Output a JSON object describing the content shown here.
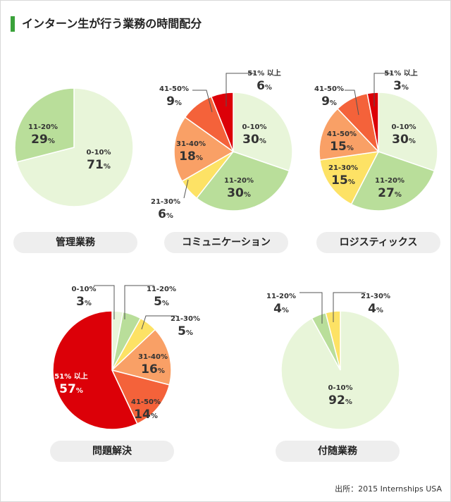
{
  "title": "インターン生が行う業務の時間配分",
  "source": "出所：2015 Internships USA",
  "colors": {
    "0-10%": "#e8f5d9",
    "11-20%": "#b9de9a",
    "21-30%": "#fde265",
    "31-40%": "#f9a066",
    "41-50%": "#f4623a",
    "51% 以上": "#dc0008"
  },
  "chart_data": [
    {
      "type": "pie",
      "title": "管理業務",
      "slices": [
        {
          "label": "0-10%",
          "value": 71
        },
        {
          "label": "11-20%",
          "value": 29
        }
      ]
    },
    {
      "type": "pie",
      "title": "コミュニケーション",
      "slices": [
        {
          "label": "0-10%",
          "value": 30
        },
        {
          "label": "11-20%",
          "value": 30
        },
        {
          "label": "21-30%",
          "value": 6
        },
        {
          "label": "31-40%",
          "value": 18
        },
        {
          "label": "41-50%",
          "value": 9
        },
        {
          "label": "51% 以上",
          "value": 6
        }
      ]
    },
    {
      "type": "pie",
      "title": "ロジスティックス",
      "slices": [
        {
          "label": "0-10%",
          "value": 30
        },
        {
          "label": "11-20%",
          "value": 27
        },
        {
          "label": "21-30%",
          "value": 15
        },
        {
          "label": "41-50%",
          "value": 15
        },
        {
          "label": "41-50%",
          "value": 9
        },
        {
          "label": "51% 以上",
          "value": 3
        }
      ]
    },
    {
      "type": "pie",
      "title": "問題解決",
      "slices": [
        {
          "label": "0-10%",
          "value": 3
        },
        {
          "label": "11-20%",
          "value": 5
        },
        {
          "label": "21-30%",
          "value": 5
        },
        {
          "label": "31-40%",
          "value": 16
        },
        {
          "label": "41-50%",
          "value": 14
        },
        {
          "label": "51% 以上",
          "value": 57
        }
      ]
    },
    {
      "type": "pie",
      "title": "付随業務",
      "slices": [
        {
          "label": "0-10%",
          "value": 92
        },
        {
          "label": "11-20%",
          "value": 4
        },
        {
          "label": "21-30%",
          "value": 4
        }
      ]
    }
  ]
}
